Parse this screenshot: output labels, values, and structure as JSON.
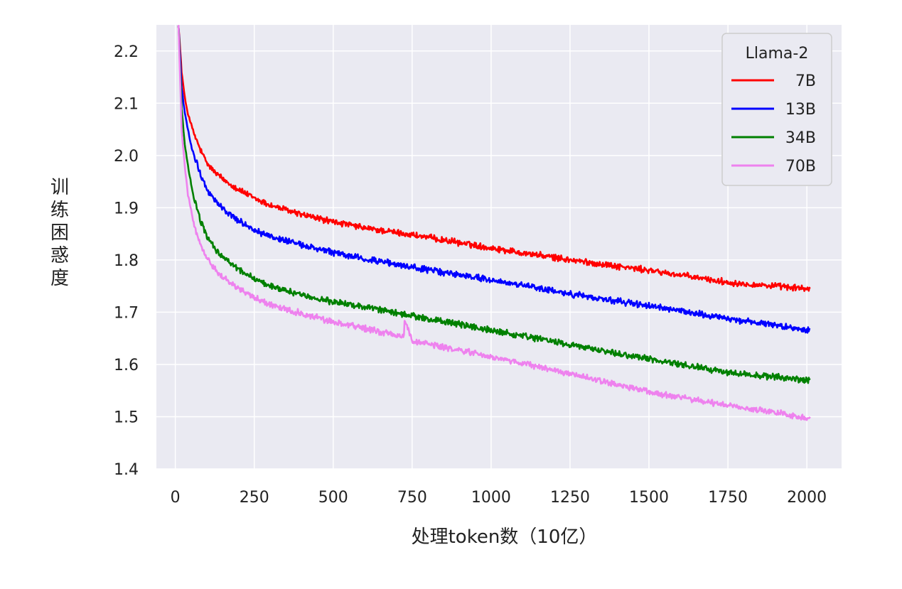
{
  "chart_data": {
    "type": "line",
    "title": "",
    "xlabel": "处理token数（10亿）",
    "ylabel": "训练困惑度",
    "xlim": [
      -60,
      2110
    ],
    "ylim": [
      1.4,
      2.25
    ],
    "x_ticks": [
      0,
      250,
      500,
      750,
      1000,
      1250,
      1500,
      1750,
      2000
    ],
    "y_ticks": [
      1.4,
      1.5,
      1.6,
      1.7,
      1.8,
      1.9,
      2.0,
      2.1,
      2.2
    ],
    "x_tick_labels": [
      "0",
      "250",
      "500",
      "750",
      "1000",
      "1250",
      "1500",
      "1750",
      "2000"
    ],
    "y_tick_labels": [
      "1.4",
      "1.5",
      "1.6",
      "1.7",
      "1.8",
      "1.9",
      "2.0",
      "2.1",
      "2.2"
    ],
    "grid": true,
    "legend": {
      "title": "Llama-2",
      "position": "top-right"
    },
    "series": [
      {
        "name": "7B",
        "color": "#ff0000",
        "x": [
          10,
          20,
          30,
          40,
          50,
          60,
          80,
          100,
          125,
          150,
          200,
          250,
          300,
          400,
          500,
          600,
          750,
          1000,
          1250,
          1500,
          1750,
          2000,
          2010
        ],
        "y": [
          2.25,
          2.16,
          2.11,
          2.08,
          2.06,
          2.04,
          2.01,
          1.985,
          1.968,
          1.955,
          1.935,
          1.918,
          1.905,
          1.887,
          1.873,
          1.861,
          1.848,
          1.823,
          1.8,
          1.78,
          1.757,
          1.745,
          1.744
        ]
      },
      {
        "name": "13B",
        "color": "#0000ff",
        "x": [
          10,
          20,
          30,
          40,
          50,
          60,
          80,
          100,
          125,
          150,
          200,
          250,
          300,
          400,
          500,
          600,
          750,
          1000,
          1250,
          1500,
          1750,
          2000,
          2010
        ],
        "y": [
          2.25,
          2.13,
          2.08,
          2.05,
          2.02,
          2.0,
          1.965,
          1.935,
          1.915,
          1.898,
          1.875,
          1.858,
          1.845,
          1.828,
          1.814,
          1.802,
          1.786,
          1.762,
          1.735,
          1.712,
          1.688,
          1.667,
          1.667
        ]
      },
      {
        "name": "34B",
        "color": "#008000",
        "x": [
          10,
          20,
          30,
          40,
          50,
          60,
          80,
          100,
          125,
          150,
          200,
          250,
          300,
          400,
          500,
          600,
          750,
          1000,
          1250,
          1500,
          1750,
          2000,
          2010
        ],
        "y": [
          2.25,
          2.09,
          2.02,
          1.98,
          1.945,
          1.915,
          1.875,
          1.845,
          1.822,
          1.805,
          1.782,
          1.764,
          1.751,
          1.733,
          1.72,
          1.71,
          1.693,
          1.665,
          1.638,
          1.61,
          1.585,
          1.57,
          1.569
        ]
      },
      {
        "name": "70B",
        "color": "#ee82ee",
        "x": [
          10,
          20,
          30,
          40,
          50,
          60,
          80,
          100,
          125,
          150,
          200,
          250,
          300,
          400,
          500,
          600,
          700,
          725,
          726,
          750,
          1000,
          1250,
          1500,
          1750,
          2000,
          2010
        ],
        "y": [
          2.25,
          2.05,
          1.98,
          1.925,
          1.895,
          1.865,
          1.83,
          1.805,
          1.783,
          1.767,
          1.745,
          1.728,
          1.715,
          1.697,
          1.682,
          1.669,
          1.656,
          1.653,
          1.688,
          1.645,
          1.615,
          1.582,
          1.548,
          1.522,
          1.498,
          1.497
        ]
      }
    ]
  }
}
